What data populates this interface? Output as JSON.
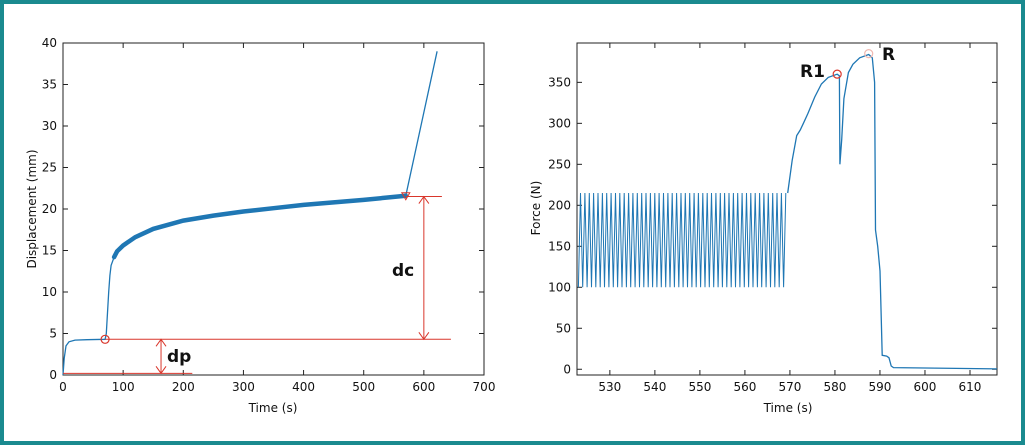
{
  "colors": {
    "series": "#1f77b4",
    "annotation": "#d9362b",
    "frame": "#1a8a8f",
    "R_marker": "#f0b8b0"
  },
  "chart_data": [
    {
      "type": "line",
      "xlabel": "Time (s)",
      "ylabel": "Displacement (mm)",
      "xlim": [
        0,
        700
      ],
      "ylim": [
        0,
        40
      ],
      "xticks": [
        0,
        100,
        200,
        300,
        400,
        500,
        600,
        700
      ],
      "yticks": [
        0,
        5,
        10,
        15,
        20,
        25,
        30,
        35,
        40
      ],
      "grid": false,
      "series": [
        {
          "x": [
            0,
            2,
            5,
            10,
            20,
            40,
            70,
            72,
            76,
            78,
            80,
            85,
            90,
            100,
            120,
            150,
            200,
            250,
            300,
            350,
            400,
            450,
            500,
            570,
            622
          ],
          "y": [
            0,
            2,
            3.5,
            4.0,
            4.2,
            4.25,
            4.3,
            5,
            10,
            12,
            13.2,
            14.2,
            14.9,
            15.6,
            16.6,
            17.6,
            18.6,
            19.2,
            19.7,
            20.1,
            20.5,
            20.8,
            21.1,
            21.6,
            39
          ]
        }
      ],
      "thick_band_x": [
        85,
        570
      ],
      "annotations": {
        "dp": {
          "label": "dp",
          "x": 163,
          "from": 0.2,
          "to": 4.3
        },
        "dc": {
          "label": "dc",
          "x": 600,
          "from": 4.3,
          "to": 21.5
        },
        "baseline_y": 0.2,
        "baseline_x": [
          0,
          215
        ],
        "primary_level_y": 4.3,
        "primary_level_x": [
          70,
          645
        ],
        "creep_level_y": 21.5,
        "creep_level_x": [
          570,
          630
        ],
        "circle_marker": [
          70,
          4.3
        ],
        "triangle_marker": [
          570,
          21.6
        ]
      }
    },
    {
      "type": "line",
      "xlabel": "Time (s)",
      "ylabel": "Force (N)",
      "xlim": [
        522.7,
        616
      ],
      "ylim": [
        -7,
        398
      ],
      "xticks": [
        530,
        540,
        550,
        560,
        570,
        580,
        590,
        600,
        610
      ],
      "yticks": [
        0,
        50,
        100,
        150,
        200,
        250,
        300,
        350
      ],
      "grid": false,
      "cyclic_segment": {
        "x_from": 523,
        "x_to": 569.5,
        "min": 100,
        "max": 215,
        "period": 0.97
      },
      "series": [
        {
          "x": [
            569.5,
            570.5,
            571.5,
            572.3,
            573,
            574,
            575.5,
            577,
            578.5,
            580.5,
            581,
            581.1,
            581.5,
            582,
            583,
            584,
            585.5,
            587.5,
            588.3,
            588.8,
            589,
            589.5,
            590,
            590.3,
            590.5,
            591.5,
            592,
            592.5,
            593,
            600,
            616
          ],
          "y": [
            215,
            255,
            285,
            292,
            300,
            312,
            332,
            348,
            356,
            360,
            358,
            250,
            280,
            330,
            362,
            372,
            380,
            384,
            380,
            350,
            170,
            150,
            120,
            60,
            17,
            16,
            14,
            4,
            2,
            1.5,
            0.5
          ]
        }
      ],
      "markers": [
        {
          "label": "R1",
          "x": 580.5,
          "y": 360
        },
        {
          "label": "R",
          "x": 587.5,
          "y": 385
        }
      ]
    }
  ]
}
